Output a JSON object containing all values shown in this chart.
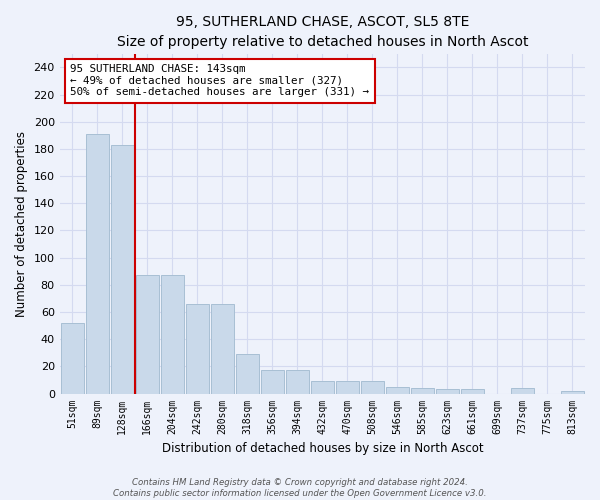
{
  "title": "95, SUTHERLAND CHASE, ASCOT, SL5 8TE",
  "subtitle": "Size of property relative to detached houses in North Ascot",
  "xlabel": "Distribution of detached houses by size in North Ascot",
  "ylabel": "Number of detached properties",
  "categories": [
    "51sqm",
    "89sqm",
    "128sqm",
    "166sqm",
    "204sqm",
    "242sqm",
    "280sqm",
    "318sqm",
    "356sqm",
    "394sqm",
    "432sqm",
    "470sqm",
    "508sqm",
    "546sqm",
    "585sqm",
    "623sqm",
    "661sqm",
    "699sqm",
    "737sqm",
    "775sqm",
    "813sqm"
  ],
  "values": [
    52,
    191,
    183,
    87,
    87,
    66,
    66,
    29,
    17,
    17,
    9,
    9,
    9,
    5,
    4,
    3,
    3,
    0,
    4,
    0,
    2
  ],
  "bar_color": "#c9d9ea",
  "bar_edge_color": "#a8bfd4",
  "red_line_x": 2.5,
  "annotation_text": "95 SUTHERLAND CHASE: 143sqm\n← 49% of detached houses are smaller (327)\n50% of semi-detached houses are larger (331) →",
  "annotation_box_color": "white",
  "annotation_box_edge_color": "#cc0000",
  "red_line_color": "#cc0000",
  "ylim": [
    0,
    250
  ],
  "yticks": [
    0,
    20,
    40,
    60,
    80,
    100,
    120,
    140,
    160,
    180,
    200,
    220,
    240
  ],
  "background_color": "#eef2fb",
  "grid_color": "#d4daf0",
  "footer_line1": "Contains HM Land Registry data © Crown copyright and database right 2024.",
  "footer_line2": "Contains public sector information licensed under the Open Government Licence v3.0.",
  "title_fontsize": 10,
  "subtitle_fontsize": 9
}
